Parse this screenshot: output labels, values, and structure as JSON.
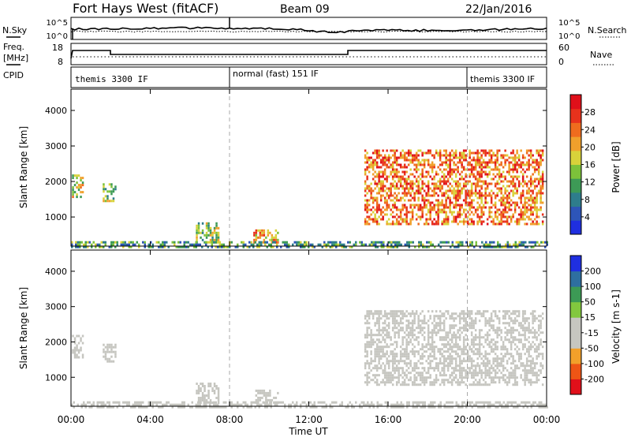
{
  "header": {
    "title": "Fort Hays West (fitACF)",
    "beam": "Beam 09",
    "date": "22/Jan/2016"
  },
  "left_labels": {
    "nsky": "N.Sky",
    "freq_line1": "Freq.",
    "freq_line2": "[MHz]",
    "cpid": "CPID"
  },
  "right_labels": {
    "nsearch": "N.Search",
    "nave": "Nave"
  },
  "noise_panel": {
    "y_ticks": [
      "10^5",
      "10^0"
    ],
    "right_ticks": [
      "10^5",
      "10^0"
    ]
  },
  "freq_panel": {
    "y_ticks": [
      "18",
      "8"
    ],
    "right_ticks": [
      "60",
      "0"
    ]
  },
  "cpid_segments": [
    {
      "label": "themis 3300 IF",
      "start": 0,
      "end": 8
    },
    {
      "label": "normal (fast) 151 IF",
      "start": 8,
      "end": 20
    },
    {
      "label": "themis 3300 IF",
      "start": 20,
      "end": 24
    }
  ],
  "colors": {
    "power_scale": [
      "#1f2fe0",
      "#2d55b8",
      "#2e7d8c",
      "#3d9a56",
      "#7cc23a",
      "#d8d23a",
      "#f0a02c",
      "#ef6c1e",
      "#e8321c",
      "#e0101a"
    ],
    "velocity_scale": [
      "#e0101a",
      "#ee5515",
      "#f2a02a",
      "#c6c6c0",
      "#c6c6c0",
      "#82c83e",
      "#3c9a55",
      "#2e6fa0",
      "#1f2fe0"
    ],
    "grey": "#c6c6c0",
    "dashed": "#aaaaaa"
  },
  "chart_data": [
    {
      "type": "heatmap",
      "title": "",
      "xlabel": "Time UT",
      "ylabel": "Slant Range [km]",
      "xlim": [
        0,
        24
      ],
      "ylim": [
        180,
        4600
      ],
      "x_tick_labels": [
        "00:00",
        "04:00",
        "08:00",
        "12:00",
        "16:00",
        "20:00",
        "00:00"
      ],
      "y_tick_labels": [
        "1000",
        "2000",
        "3000",
        "4000"
      ],
      "colorbar_label": "Power [dB]",
      "colorbar_ticks": [
        "4",
        "8",
        "12",
        "16",
        "20",
        "24",
        "28"
      ],
      "colorbar_range": [
        0,
        30
      ],
      "regions": [
        {
          "time": [
            0.05,
            0.55
          ],
          "range": [
            1550,
            2200
          ],
          "value": 16
        },
        {
          "time": [
            1.6,
            2.2
          ],
          "range": [
            1450,
            1950
          ],
          "value": 14
        },
        {
          "time": [
            6.3,
            7.4
          ],
          "range": [
            300,
            850
          ],
          "value": 14
        },
        {
          "time": [
            9.2,
            10.4
          ],
          "range": [
            300,
            650
          ],
          "value": 20
        },
        {
          "time": [
            14.8,
            23.8
          ],
          "range": [
            800,
            2900
          ],
          "value": 22
        },
        {
          "time": [
            0.0,
            24.0
          ],
          "range": [
            180,
            320
          ],
          "value": 10
        }
      ]
    },
    {
      "type": "heatmap",
      "title": "",
      "xlabel": "Time UT",
      "ylabel": "Slant Range [km]",
      "xlim": [
        0,
        24
      ],
      "ylim": [
        180,
        4600
      ],
      "x_tick_labels": [
        "00:00",
        "04:00",
        "08:00",
        "12:00",
        "16:00",
        "20:00",
        "00:00"
      ],
      "y_tick_labels": [
        "1000",
        "2000",
        "3000",
        "4000"
      ],
      "colorbar_label": "Velocity [m s-1]",
      "colorbar_ticks": [
        "-200",
        "-100",
        "-50",
        "-15",
        "15",
        "50",
        "100",
        "200"
      ],
      "colorbar_range": [
        -250,
        250
      ],
      "regions": [
        {
          "time": [
            0.05,
            0.55
          ],
          "range": [
            1550,
            2200
          ],
          "value": 0
        },
        {
          "time": [
            1.6,
            2.2
          ],
          "range": [
            1450,
            1950
          ],
          "value": 0
        },
        {
          "time": [
            6.3,
            7.4
          ],
          "range": [
            300,
            850
          ],
          "value": 0
        },
        {
          "time": [
            9.2,
            10.4
          ],
          "range": [
            300,
            650
          ],
          "value": 0
        },
        {
          "time": [
            14.8,
            23.8
          ],
          "range": [
            800,
            2900
          ],
          "value": 0
        },
        {
          "time": [
            0.0,
            24.0
          ],
          "range": [
            180,
            320
          ],
          "value": -60
        }
      ]
    }
  ]
}
